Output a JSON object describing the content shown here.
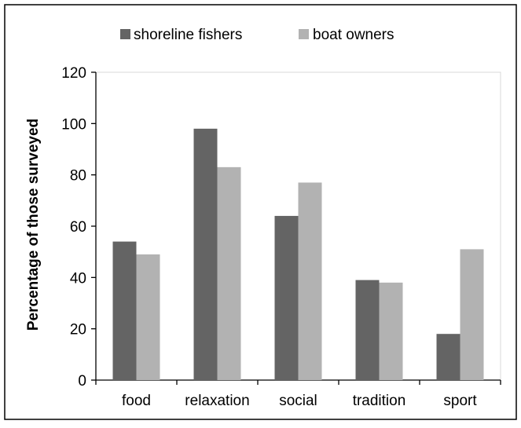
{
  "chart_data": {
    "type": "bar",
    "categories": [
      "food",
      "relaxation",
      "social",
      "tradition",
      "sport"
    ],
    "series": [
      {
        "name": "shoreline fishers",
        "values": [
          54,
          98,
          64,
          39,
          18
        ],
        "color": "#646464"
      },
      {
        "name": "boat owners",
        "values": [
          49,
          83,
          77,
          38,
          51
        ],
        "color": "#b2b2b2"
      }
    ],
    "ylabel": "Percentage of those surveyed",
    "xlabel": "",
    "ylim": [
      0,
      120
    ],
    "yticks": [
      0,
      20,
      40,
      60,
      80,
      100,
      120
    ],
    "grid": false,
    "legend_position": "top"
  }
}
